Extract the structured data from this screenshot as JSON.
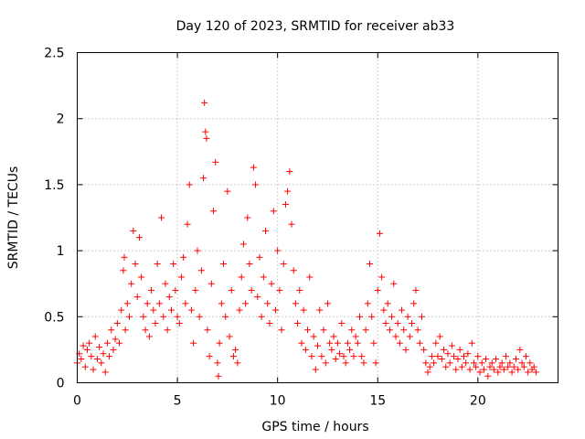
{
  "chart_data": {
    "type": "scatter",
    "title": "Day 120 of 2023, SRMTID for receiver ab33",
    "xlabel": "GPS time / hours",
    "ylabel": "SRMTID / TECUs",
    "xlim": [
      0,
      24
    ],
    "ylim": [
      0,
      2.5
    ],
    "xticks": [
      0,
      5,
      10,
      15,
      20
    ],
    "xtick_labels": [
      "0",
      "5",
      "10",
      "15",
      "20"
    ],
    "yticks": [
      0,
      0.5,
      1,
      1.5,
      2,
      2.5
    ],
    "ytick_labels": [
      "0",
      "0.5",
      "1",
      "1.5",
      "2",
      "2.5"
    ],
    "grid": true,
    "marker": "+",
    "color": "#ff0000",
    "series": [
      {
        "name": "SRMTID",
        "points": [
          [
            0.0,
            0.15
          ],
          [
            0.1,
            0.22
          ],
          [
            0.2,
            0.18
          ],
          [
            0.3,
            0.28
          ],
          [
            0.4,
            0.12
          ],
          [
            0.5,
            0.25
          ],
          [
            0.6,
            0.3
          ],
          [
            0.7,
            0.2
          ],
          [
            0.8,
            0.1
          ],
          [
            0.9,
            0.35
          ],
          [
            1.0,
            0.18
          ],
          [
            1.1,
            0.27
          ],
          [
            1.2,
            0.15
          ],
          [
            1.3,
            0.22
          ],
          [
            1.4,
            0.08
          ],
          [
            1.5,
            0.3
          ],
          [
            1.6,
            0.2
          ],
          [
            1.7,
            0.4
          ],
          [
            1.8,
            0.25
          ],
          [
            1.9,
            0.33
          ],
          [
            2.0,
            0.45
          ],
          [
            2.1,
            0.3
          ],
          [
            2.2,
            0.55
          ],
          [
            2.3,
            0.85
          ],
          [
            2.35,
            0.95
          ],
          [
            2.4,
            0.4
          ],
          [
            2.5,
            0.6
          ],
          [
            2.6,
            0.5
          ],
          [
            2.7,
            0.75
          ],
          [
            2.8,
            1.15
          ],
          [
            2.9,
            0.9
          ],
          [
            3.0,
            0.65
          ],
          [
            3.1,
            1.1
          ],
          [
            3.2,
            0.8
          ],
          [
            3.3,
            0.5
          ],
          [
            3.4,
            0.4
          ],
          [
            3.5,
            0.6
          ],
          [
            3.6,
            0.35
          ],
          [
            3.7,
            0.7
          ],
          [
            3.8,
            0.55
          ],
          [
            3.9,
            0.45
          ],
          [
            4.0,
            0.9
          ],
          [
            4.1,
            0.6
          ],
          [
            4.2,
            1.25
          ],
          [
            4.3,
            0.5
          ],
          [
            4.4,
            0.75
          ],
          [
            4.5,
            0.4
          ],
          [
            4.6,
            0.65
          ],
          [
            4.7,
            0.55
          ],
          [
            4.8,
            0.9
          ],
          [
            4.9,
            0.7
          ],
          [
            5.0,
            0.5
          ],
          [
            5.1,
            0.45
          ],
          [
            5.2,
            0.8
          ],
          [
            5.3,
            0.95
          ],
          [
            5.4,
            0.6
          ],
          [
            5.5,
            1.2
          ],
          [
            5.6,
            1.5
          ],
          [
            5.7,
            0.55
          ],
          [
            5.8,
            0.3
          ],
          [
            5.9,
            0.7
          ],
          [
            6.0,
            1.0
          ],
          [
            6.1,
            0.5
          ],
          [
            6.2,
            0.85
          ],
          [
            6.3,
            1.55
          ],
          [
            6.35,
            2.12
          ],
          [
            6.4,
            1.9
          ],
          [
            6.45,
            1.85
          ],
          [
            6.5,
            0.4
          ],
          [
            6.6,
            0.2
          ],
          [
            6.7,
            0.75
          ],
          [
            6.8,
            1.3
          ],
          [
            6.9,
            1.67
          ],
          [
            7.0,
            0.15
          ],
          [
            7.05,
            0.05
          ],
          [
            7.1,
            0.3
          ],
          [
            7.2,
            0.6
          ],
          [
            7.3,
            0.9
          ],
          [
            7.4,
            0.5
          ],
          [
            7.5,
            1.45
          ],
          [
            7.6,
            0.35
          ],
          [
            7.7,
            0.7
          ],
          [
            7.8,
            0.2
          ],
          [
            7.9,
            0.25
          ],
          [
            8.0,
            0.15
          ],
          [
            8.1,
            0.55
          ],
          [
            8.2,
            0.8
          ],
          [
            8.3,
            1.05
          ],
          [
            8.4,
            0.6
          ],
          [
            8.5,
            1.25
          ],
          [
            8.6,
            0.9
          ],
          [
            8.7,
            0.7
          ],
          [
            8.8,
            1.63
          ],
          [
            8.9,
            1.5
          ],
          [
            9.0,
            0.65
          ],
          [
            9.1,
            0.95
          ],
          [
            9.2,
            0.5
          ],
          [
            9.3,
            0.8
          ],
          [
            9.4,
            1.15
          ],
          [
            9.5,
            0.6
          ],
          [
            9.6,
            0.45
          ],
          [
            9.7,
            0.75
          ],
          [
            9.8,
            1.3
          ],
          [
            9.9,
            0.55
          ],
          [
            10.0,
            1.0
          ],
          [
            10.1,
            0.7
          ],
          [
            10.2,
            0.4
          ],
          [
            10.3,
            0.9
          ],
          [
            10.4,
            1.35
          ],
          [
            10.5,
            1.45
          ],
          [
            10.6,
            1.6
          ],
          [
            10.7,
            1.2
          ],
          [
            10.8,
            0.85
          ],
          [
            10.9,
            0.6
          ],
          [
            11.0,
            0.45
          ],
          [
            11.1,
            0.7
          ],
          [
            11.2,
            0.3
          ],
          [
            11.3,
            0.55
          ],
          [
            11.4,
            0.25
          ],
          [
            11.5,
            0.4
          ],
          [
            11.6,
            0.8
          ],
          [
            11.7,
            0.2
          ],
          [
            11.8,
            0.35
          ],
          [
            11.9,
            0.1
          ],
          [
            12.0,
            0.28
          ],
          [
            12.1,
            0.55
          ],
          [
            12.2,
            0.2
          ],
          [
            12.3,
            0.4
          ],
          [
            12.4,
            0.15
          ],
          [
            12.5,
            0.6
          ],
          [
            12.6,
            0.3
          ],
          [
            12.7,
            0.25
          ],
          [
            12.8,
            0.35
          ],
          [
            12.9,
            0.18
          ],
          [
            13.0,
            0.3
          ],
          [
            13.1,
            0.22
          ],
          [
            13.2,
            0.45
          ],
          [
            13.3,
            0.2
          ],
          [
            13.4,
            0.15
          ],
          [
            13.5,
            0.3
          ],
          [
            13.6,
            0.25
          ],
          [
            13.7,
            0.4
          ],
          [
            13.8,
            0.2
          ],
          [
            13.9,
            0.35
          ],
          [
            14.0,
            0.3
          ],
          [
            14.1,
            0.5
          ],
          [
            14.2,
            0.2
          ],
          [
            14.3,
            0.15
          ],
          [
            14.4,
            0.4
          ],
          [
            14.5,
            0.6
          ],
          [
            14.6,
            0.9
          ],
          [
            14.7,
            0.5
          ],
          [
            14.8,
            0.3
          ],
          [
            14.9,
            0.15
          ],
          [
            15.0,
            0.7
          ],
          [
            15.1,
            1.13
          ],
          [
            15.2,
            0.8
          ],
          [
            15.3,
            0.55
          ],
          [
            15.4,
            0.45
          ],
          [
            15.5,
            0.6
          ],
          [
            15.6,
            0.4
          ],
          [
            15.7,
            0.5
          ],
          [
            15.8,
            0.75
          ],
          [
            15.9,
            0.35
          ],
          [
            16.0,
            0.45
          ],
          [
            16.1,
            0.3
          ],
          [
            16.2,
            0.55
          ],
          [
            16.3,
            0.4
          ],
          [
            16.4,
            0.25
          ],
          [
            16.5,
            0.5
          ],
          [
            16.6,
            0.35
          ],
          [
            16.7,
            0.45
          ],
          [
            16.8,
            0.6
          ],
          [
            16.9,
            0.7
          ],
          [
            17.0,
            0.4
          ],
          [
            17.1,
            0.3
          ],
          [
            17.2,
            0.5
          ],
          [
            17.3,
            0.25
          ],
          [
            17.4,
            0.15
          ],
          [
            17.5,
            0.08
          ],
          [
            17.6,
            0.12
          ],
          [
            17.7,
            0.2
          ],
          [
            17.8,
            0.15
          ],
          [
            17.9,
            0.3
          ],
          [
            18.0,
            0.2
          ],
          [
            18.1,
            0.35
          ],
          [
            18.2,
            0.18
          ],
          [
            18.3,
            0.25
          ],
          [
            18.4,
            0.12
          ],
          [
            18.5,
            0.22
          ],
          [
            18.6,
            0.15
          ],
          [
            18.7,
            0.28
          ],
          [
            18.8,
            0.2
          ],
          [
            18.9,
            0.1
          ],
          [
            19.0,
            0.18
          ],
          [
            19.1,
            0.25
          ],
          [
            19.2,
            0.12
          ],
          [
            19.3,
            0.2
          ],
          [
            19.4,
            0.15
          ],
          [
            19.5,
            0.22
          ],
          [
            19.6,
            0.1
          ],
          [
            19.7,
            0.3
          ],
          [
            19.8,
            0.15
          ],
          [
            19.9,
            0.12
          ],
          [
            20.0,
            0.2
          ],
          [
            20.1,
            0.08
          ],
          [
            20.2,
            0.15
          ],
          [
            20.3,
            0.1
          ],
          [
            20.4,
            0.18
          ],
          [
            20.5,
            0.05
          ],
          [
            20.6,
            0.12
          ],
          [
            20.7,
            0.15
          ],
          [
            20.8,
            0.1
          ],
          [
            20.9,
            0.18
          ],
          [
            21.0,
            0.08
          ],
          [
            21.1,
            0.12
          ],
          [
            21.2,
            0.15
          ],
          [
            21.3,
            0.1
          ],
          [
            21.4,
            0.2
          ],
          [
            21.5,
            0.12
          ],
          [
            21.6,
            0.15
          ],
          [
            21.7,
            0.08
          ],
          [
            21.8,
            0.12
          ],
          [
            21.9,
            0.18
          ],
          [
            22.0,
            0.1
          ],
          [
            22.1,
            0.25
          ],
          [
            22.2,
            0.15
          ],
          [
            22.3,
            0.12
          ],
          [
            22.4,
            0.2
          ],
          [
            22.5,
            0.08
          ],
          [
            22.6,
            0.15
          ],
          [
            22.7,
            0.1
          ],
          [
            22.8,
            0.12
          ],
          [
            22.9,
            0.08
          ]
        ]
      }
    ]
  }
}
